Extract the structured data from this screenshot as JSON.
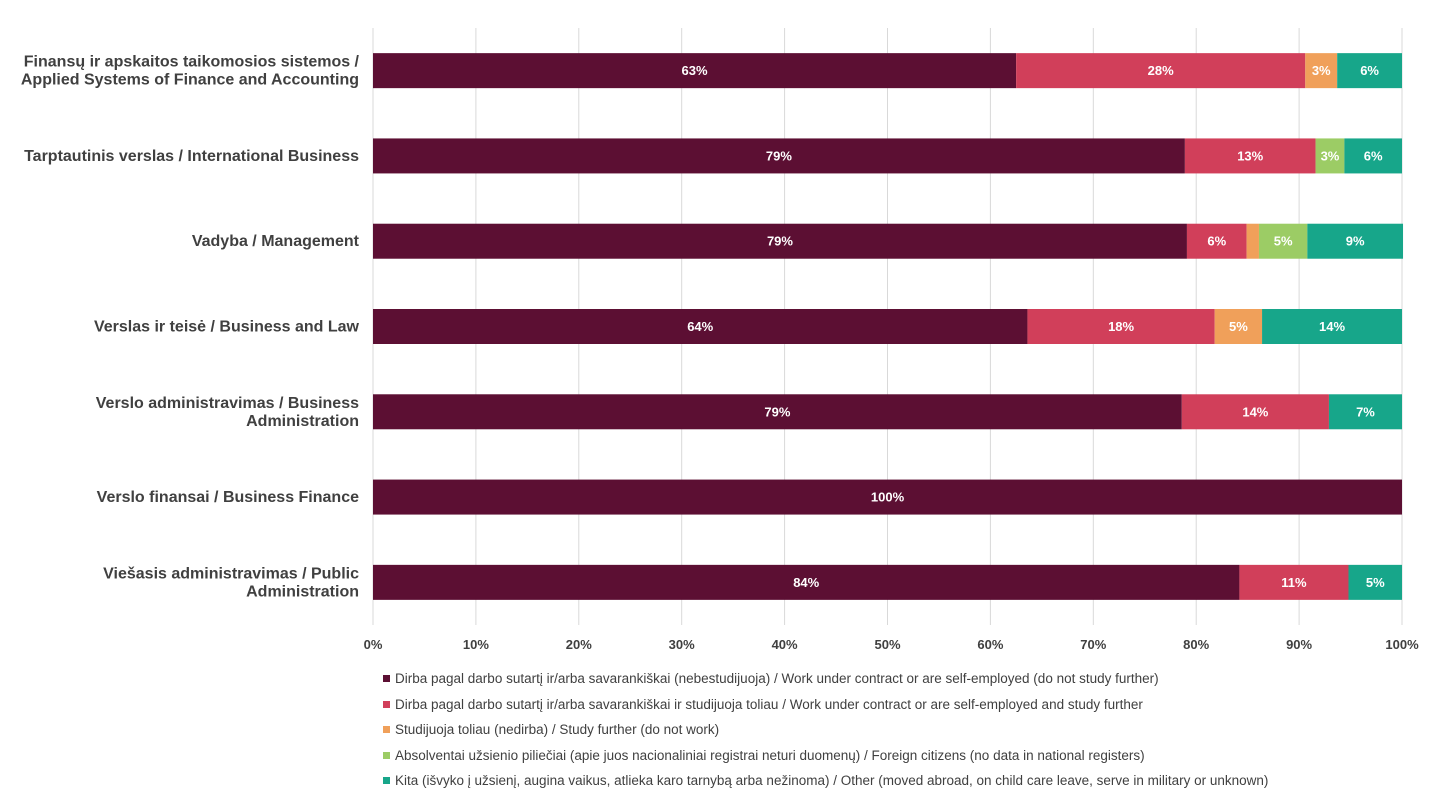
{
  "chart_data": {
    "type": "bar",
    "orientation": "horizontal",
    "stacked": true,
    "categories": [
      [
        "Finansų ir apskaitos taikomosios sistemos /",
        "Applied Systems of Finance and Accounting"
      ],
      [
        "Tarptautinis verslas / International Business"
      ],
      [
        "Vadyba / Management"
      ],
      [
        "Verslas ir teisė / Business and Law"
      ],
      [
        "Verslo administravimas / Business",
        "Administration"
      ],
      [
        "Verslo finansai / Business Finance"
      ],
      [
        "Viešasis administravimas / Public",
        "Administration"
      ]
    ],
    "series": [
      {
        "name": "Dirba pagal darbo sutartį ir/arba savarankiškai (nebestudijuoja) / Work under contract or are self-employed (do not study further)",
        "color": "#5c0f33",
        "values": [
          62.5,
          78.9,
          79.1,
          63.6,
          78.6,
          100,
          84.2
        ],
        "labels": [
          "63%",
          "79%",
          "79%",
          "64%",
          "79%",
          "100%",
          "84%"
        ]
      },
      {
        "name": "Dirba pagal darbo sutartį ir/arba savarankiškai  ir studijuoja toliau / Work under contract or are self-employed and study further",
        "color": "#d13f5a",
        "values": [
          28.1,
          12.7,
          5.8,
          18.2,
          14.3,
          0,
          10.6
        ],
        "labels": [
          "28%",
          "13%",
          "6%",
          "18%",
          "14%",
          "",
          "11%"
        ]
      },
      {
        "name": "Studijuoja toliau (nedirba) / Study further (do not work)",
        "color": "#f0a05a",
        "values": [
          3.1,
          0,
          1.2,
          4.6,
          0,
          0,
          0
        ],
        "labels": [
          "3%",
          "",
          "",
          "5%",
          "",
          "",
          ""
        ]
      },
      {
        "name": "Absolventai užsienio piliečiai (apie juos nacionaliniai registrai neturi duomenų) / Foreign citizens (no data in national registers)",
        "color": "#9ccc65",
        "values": [
          0,
          2.8,
          4.7,
          0,
          0,
          0,
          0
        ],
        "labels": [
          "",
          "3%",
          "5%",
          "",
          "",
          "",
          ""
        ]
      },
      {
        "name": "Kita (išvyko į užsienį, augina vaikus, atlieka karo tarnybą arba nežinoma) / Other (moved abroad, on child care leave, serve in military or unknown)",
        "color": "#17a68a",
        "values": [
          6.3,
          5.6,
          9.3,
          13.6,
          7.1,
          0,
          5.2
        ],
        "labels": [
          "6%",
          "6%",
          "9%",
          "14%",
          "7%",
          "",
          "5%"
        ]
      }
    ],
    "xlim": [
      0,
      100
    ],
    "x_ticks": [
      "0%",
      "10%",
      "20%",
      "30%",
      "40%",
      "50%",
      "60%",
      "70%",
      "80%",
      "90%",
      "100%"
    ],
    "grid": true,
    "legend_position": "bottom",
    "title": "",
    "xlabel": "",
    "ylabel": ""
  }
}
